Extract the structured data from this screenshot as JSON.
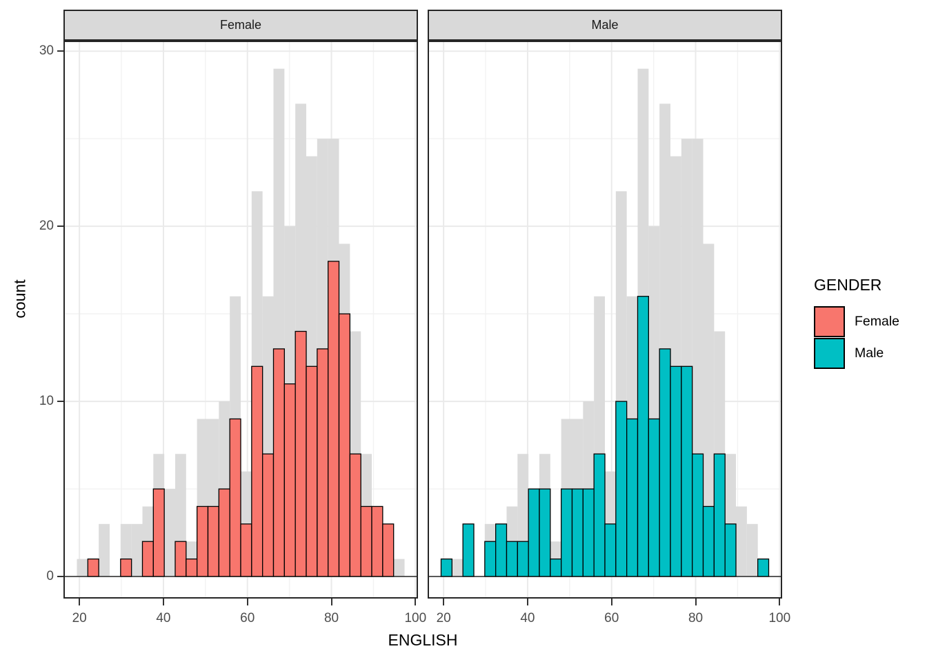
{
  "chart_data": {
    "type": "bar",
    "subtype": "faceted-histogram",
    "xlabel": "ENGLISH",
    "ylabel": "count",
    "x_ticks": [
      20,
      40,
      60,
      80,
      100
    ],
    "x_tick_labels": [
      "20",
      "40",
      "60",
      "80",
      "100"
    ],
    "y_ticks": [
      0,
      10,
      20,
      30
    ],
    "y_tick_labels": [
      "0",
      "10",
      "20",
      "30"
    ],
    "x_minor": [
      30,
      50,
      70,
      90
    ],
    "y_minor": [
      5,
      15,
      25
    ],
    "x_domain": [
      16.2,
      100.6
    ],
    "y_domain": [
      -1.26,
      30.6
    ],
    "bin_start": 19.4,
    "bin_width": 2.6,
    "bin_count": 30,
    "series": [
      {
        "name": "total_background",
        "role": "background-all-data",
        "color": "#DBDBDB",
        "values": [
          1,
          1,
          3,
          0,
          3,
          3,
          4,
          7,
          5,
          7,
          2,
          9,
          9,
          10,
          16,
          6,
          22,
          16,
          29,
          20,
          27,
          24,
          25,
          25,
          19,
          14,
          7,
          4,
          3,
          1
        ]
      },
      {
        "name": "Female",
        "role": "facet-highlight",
        "color": "#F8766D",
        "values": [
          0,
          1,
          0,
          0,
          1,
          0,
          2,
          5,
          0,
          2,
          1,
          4,
          4,
          5,
          9,
          3,
          12,
          7,
          13,
          11,
          14,
          12,
          13,
          18,
          15,
          7,
          4,
          4,
          3,
          0
        ]
      },
      {
        "name": "Male",
        "role": "facet-highlight",
        "color": "#00BFC4",
        "values": [
          1,
          0,
          3,
          0,
          2,
          3,
          2,
          2,
          5,
          5,
          1,
          5,
          5,
          5,
          7,
          3,
          10,
          9,
          16,
          9,
          13,
          12,
          12,
          7,
          4,
          7,
          3,
          0,
          0,
          1
        ]
      }
    ],
    "facets": [
      {
        "label": "Female",
        "series": "Female"
      },
      {
        "label": "Male",
        "series": "Male"
      }
    ],
    "legend": {
      "title": "GENDER",
      "position": "right",
      "entries": [
        {
          "label": "Female",
          "color": "#F8766D"
        },
        {
          "label": "Male",
          "color": "#00BFC4"
        }
      ]
    },
    "style": {
      "bar_outline": "#000000",
      "panel_border": "#262626",
      "grid_major": "#EAEAEA",
      "grid_minor": "#F2F2F2",
      "strip_fill": "#D9D9D9",
      "axis_text": "#4D4D4D",
      "tick_mark": "#333333",
      "background": "#FFFFFF",
      "grid": true
    }
  }
}
